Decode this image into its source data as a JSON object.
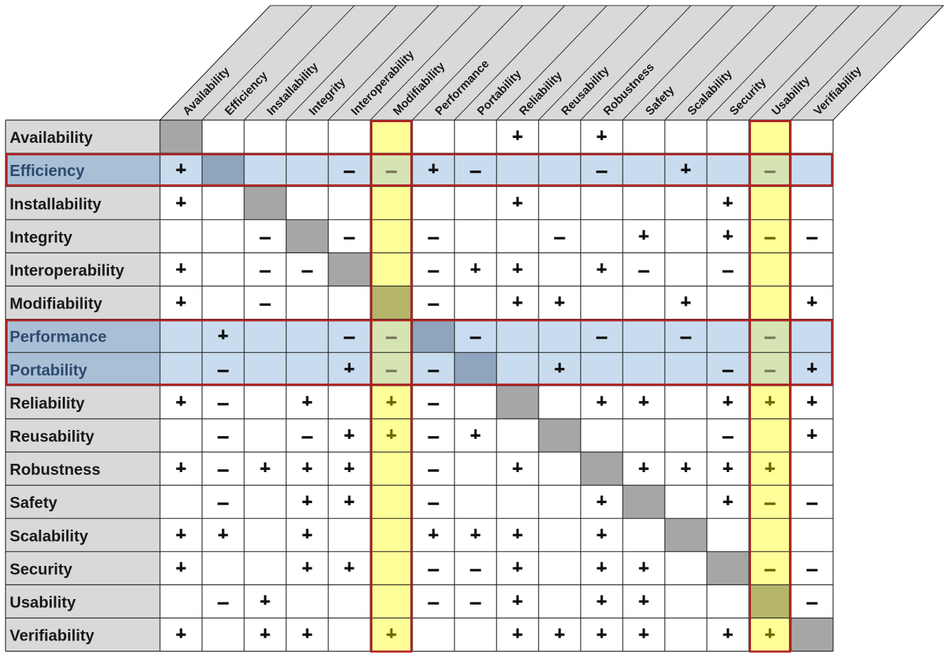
{
  "attributes": [
    "Availability",
    "Efficiency",
    "Installability",
    "Integrity",
    "Interoperability",
    "Modifiability",
    "Performance",
    "Portability",
    "Reliability",
    "Reusability",
    "Robustness",
    "Safety",
    "Scalability",
    "Security",
    "Usability",
    "Verifiability"
  ],
  "highlighted_rows": [
    "Efficiency",
    "Performance",
    "Portability"
  ],
  "highlighted_columns": [
    "Modifiability",
    "Usability"
  ],
  "matrix": [
    [
      "",
      "",
      "",
      "",
      "",
      "",
      "",
      "",
      "+",
      "",
      "+",
      "",
      "",
      "",
      "",
      ""
    ],
    [
      "+",
      "",
      "",
      "",
      "-",
      "-",
      "+",
      "-",
      "",
      "",
      "-",
      "",
      "+",
      "",
      "-",
      ""
    ],
    [
      "+",
      "",
      "",
      "",
      "",
      "",
      "",
      "",
      "+",
      "",
      "",
      "",
      "",
      "+",
      "",
      ""
    ],
    [
      "",
      "",
      "-",
      "",
      "-",
      "",
      "-",
      "",
      "",
      "-",
      "",
      "+",
      "",
      "+",
      "-",
      "-"
    ],
    [
      "+",
      "",
      "-",
      "-",
      "",
      "",
      "-",
      "+",
      "+",
      "",
      "+",
      "-",
      "",
      "-",
      "",
      ""
    ],
    [
      "+",
      "",
      "-",
      "",
      "",
      "",
      "-",
      "",
      "+",
      "+",
      "",
      "",
      "+",
      "",
      "",
      "+"
    ],
    [
      "",
      "+",
      "",
      "",
      "-",
      "-",
      "",
      "-",
      "",
      "",
      "-",
      "",
      "-",
      "",
      "-",
      ""
    ],
    [
      "",
      "-",
      "",
      "",
      "+",
      "-",
      "-",
      "",
      "",
      "+",
      "",
      "",
      "",
      "-",
      "-",
      "+"
    ],
    [
      "+",
      "-",
      "",
      "+",
      "",
      "+",
      "-",
      "",
      "",
      "",
      "+",
      "+",
      "",
      "+",
      "+",
      "+"
    ],
    [
      "",
      "-",
      "",
      "-",
      "+",
      "+",
      "-",
      "+",
      "",
      "",
      "",
      "",
      "",
      "-",
      "",
      "+"
    ],
    [
      "+",
      "-",
      "+",
      "+",
      "+",
      "",
      "-",
      "",
      "+",
      "",
      "",
      "+",
      "+",
      "+",
      "+",
      ""
    ],
    [
      "",
      "-",
      "",
      "+",
      "+",
      "",
      "-",
      "",
      "",
      "",
      "+",
      "",
      "",
      "+",
      "-",
      "-"
    ],
    [
      "+",
      "+",
      "",
      "+",
      "",
      "",
      "+",
      "+",
      "+",
      "",
      "+",
      "",
      "",
      "",
      "",
      ""
    ],
    [
      "+",
      "",
      "",
      "+",
      "+",
      "",
      "-",
      "-",
      "+",
      "",
      "+",
      "+",
      "",
      "",
      "-",
      "-"
    ],
    [
      "",
      "-",
      "+",
      "",
      "",
      "",
      "-",
      "-",
      "+",
      "",
      "+",
      "+",
      "",
      "",
      "",
      "-"
    ],
    [
      "+",
      "",
      "+",
      "+",
      "",
      "+",
      "",
      "",
      "+",
      "+",
      "+",
      "+",
      "",
      "+",
      "+",
      ""
    ]
  ],
  "colors": {
    "label_bg": "#d9d9d9",
    "diagonal": "#a6a6a6",
    "row_highlight": "#c9dcef",
    "row_label_highlight": "#a9bfd5",
    "row_diagonal": "#8ea5bd",
    "col_highlight": "#ffff99",
    "col_diagonal": "#b5b56a",
    "intersection": "#d6e4b3",
    "highlight_border": "#b22222",
    "grid": "#222222",
    "col_symbol": "#6b6b00"
  }
}
